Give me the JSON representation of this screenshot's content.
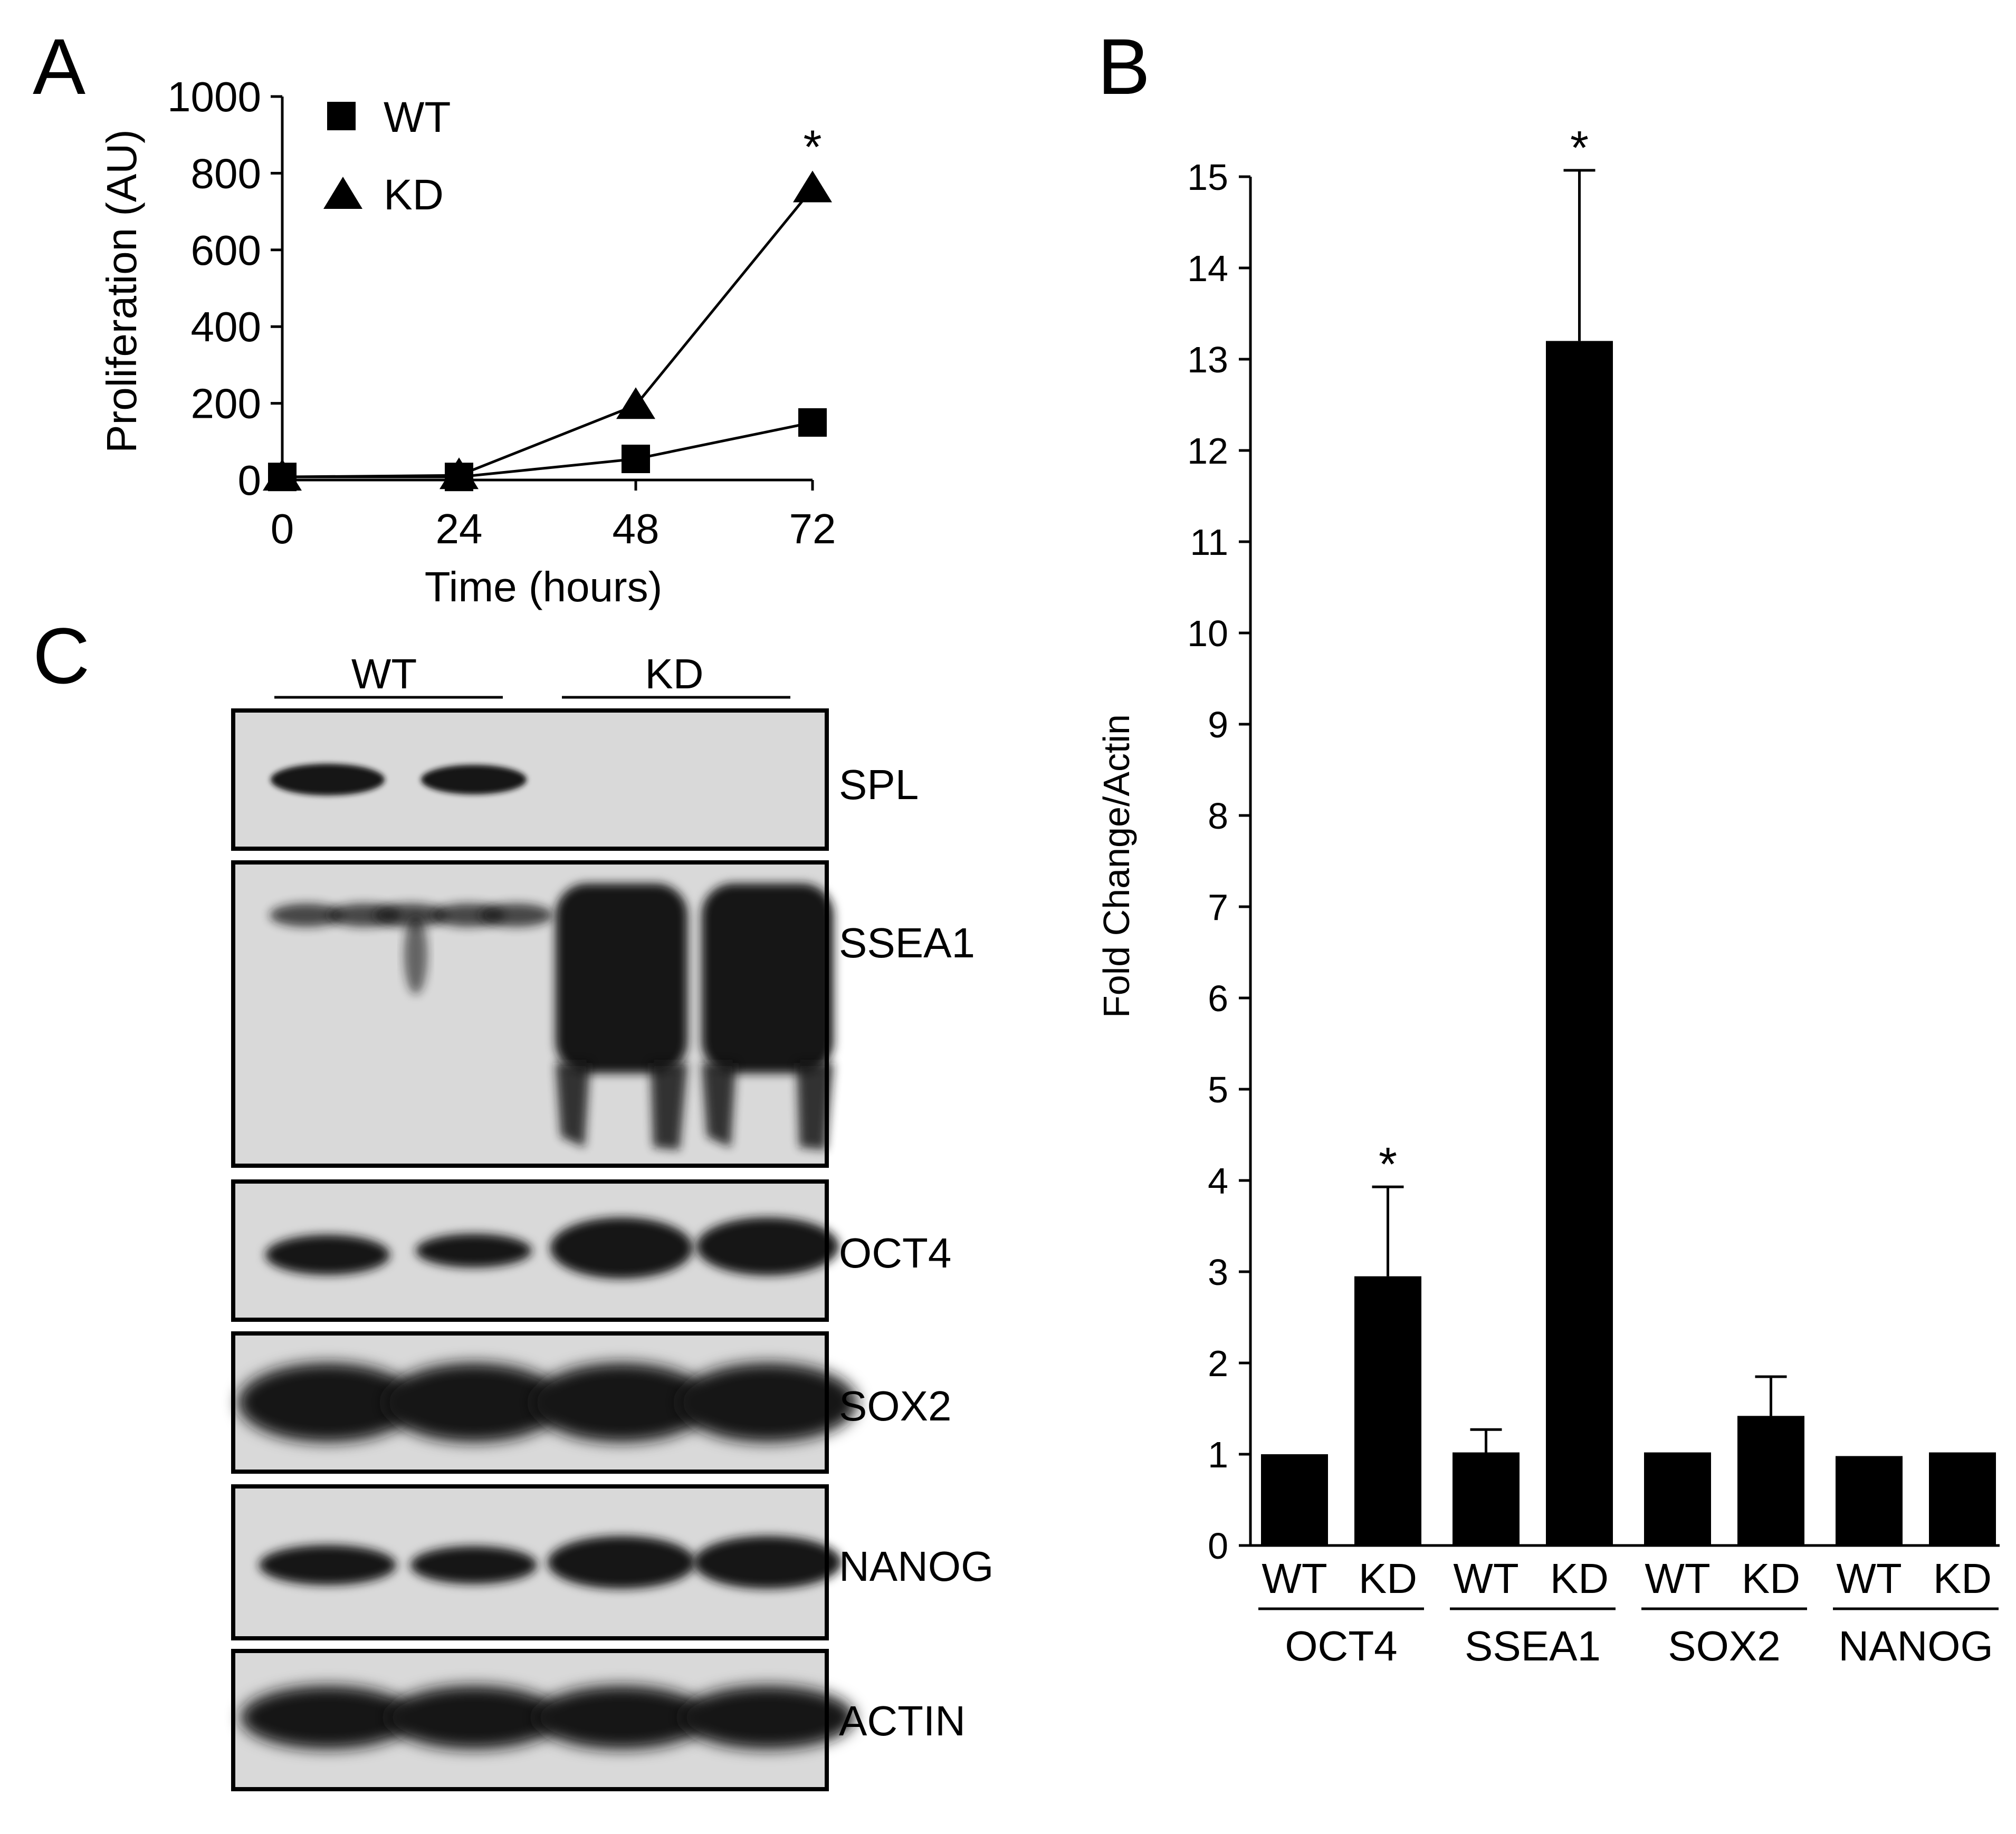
{
  "panels": {
    "A": {
      "letter": "A"
    },
    "B": {
      "letter": "B"
    },
    "C": {
      "letter": "C"
    }
  },
  "chart_data": [
    {
      "panel": "A",
      "type": "line",
      "xlabel": "Time (hours)",
      "ylabel": "Proliferation (AU)",
      "x": [
        0,
        24,
        48,
        72
      ],
      "xticks": [
        "0",
        "24",
        "48",
        "72"
      ],
      "yticks": [
        "0",
        "200",
        "400",
        "600",
        "800",
        "1000"
      ],
      "xlim": [
        0,
        72
      ],
      "ylim": [
        0,
        1000
      ],
      "series": [
        {
          "name": "WT",
          "marker": "square",
          "values": [
            8,
            8,
            55,
            150
          ]
        },
        {
          "name": "KD",
          "marker": "triangle",
          "values": [
            8,
            12,
            195,
            760
          ]
        }
      ],
      "annotations": [
        {
          "text": "*",
          "x": 72,
          "series": "KD"
        }
      ],
      "legend": "top-left",
      "grid": false
    },
    {
      "panel": "B",
      "type": "bar",
      "ylabel": "Fold Change/Actin",
      "ylim": [
        0,
        15
      ],
      "yticks": [
        "0",
        "1",
        "2",
        "3",
        "4",
        "5",
        "6",
        "7",
        "8",
        "9",
        "10",
        "11",
        "12",
        "13",
        "14",
        "15"
      ],
      "groups": [
        {
          "label": "OCT4",
          "bars": [
            {
              "label": "WT",
              "value": 1.0,
              "error": 0
            },
            {
              "label": "KD",
              "value": 2.95,
              "error": 0.98,
              "significant": "*"
            }
          ]
        },
        {
          "label": "SSEA1",
          "bars": [
            {
              "label": "WT",
              "value": 1.02,
              "error": 0.25
            },
            {
              "label": "KD",
              "value": 13.2,
              "error": 1.87,
              "significant": "*"
            }
          ]
        },
        {
          "label": "SOX2",
          "bars": [
            {
              "label": "WT",
              "value": 1.02,
              "error": 0
            },
            {
              "label": "KD",
              "value": 1.42,
              "error": 0.43
            }
          ]
        },
        {
          "label": "NANOG",
          "bars": [
            {
              "label": "WT",
              "value": 0.98,
              "error": 0
            },
            {
              "label": "KD",
              "value": 1.02,
              "error": 0
            }
          ]
        }
      ],
      "bar_color": "#000000",
      "grid": false
    }
  ],
  "blot": {
    "groups": [
      "WT",
      "KD"
    ],
    "rows": [
      {
        "label": "SPL",
        "pattern": "spl"
      },
      {
        "label": "SSEA1",
        "pattern": "ssea1"
      },
      {
        "label": "OCT4",
        "pattern": "oct4"
      },
      {
        "label": "SOX2",
        "pattern": "sox2"
      },
      {
        "label": "NANOG",
        "pattern": "nanog"
      },
      {
        "label": "ACTIN",
        "pattern": "actin"
      }
    ],
    "colors": {
      "background": "#d9d9d9",
      "band": "#141414"
    }
  }
}
